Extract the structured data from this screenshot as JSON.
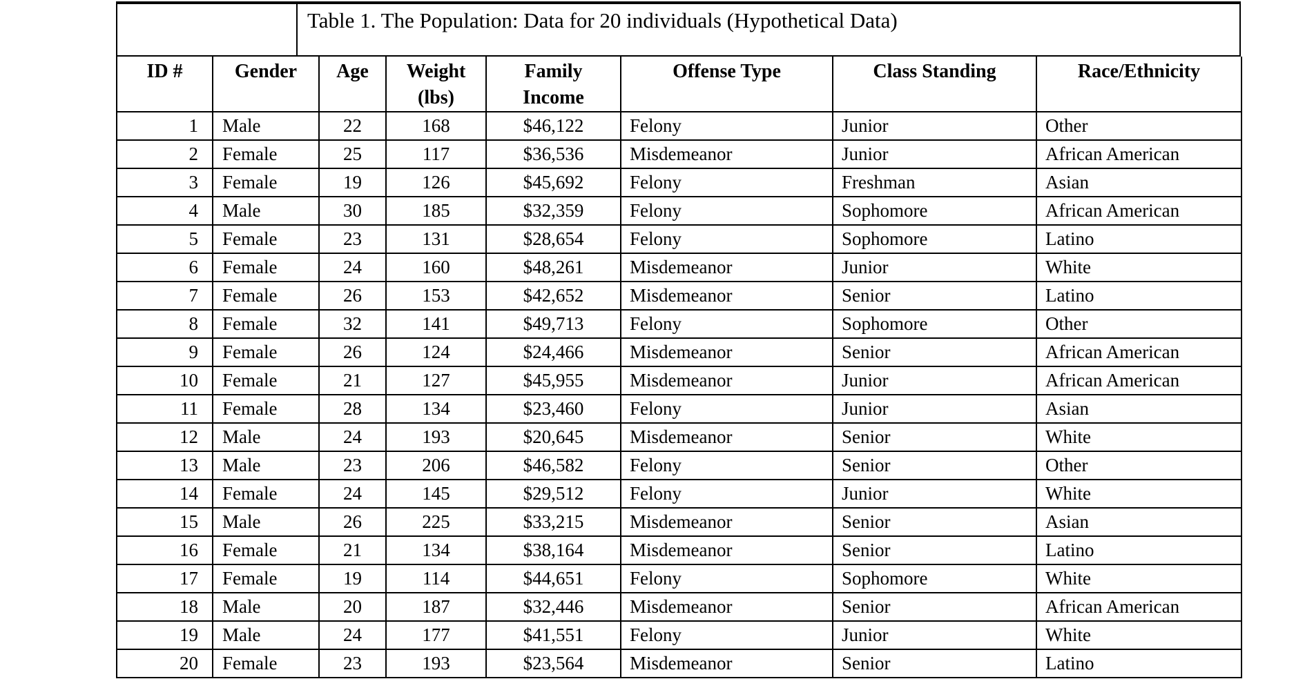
{
  "colors": {
    "page_background": "#ffffff",
    "border": "#000000",
    "text": "#000000"
  },
  "table": {
    "title": "Table 1. The Population: Data for 20 individuals (Hypothetical Data)",
    "headers": [
      "ID #",
      "Gender",
      "Age",
      "Weight (lbs)",
      "Family Income",
      "Offense Type",
      "Class Standing",
      "Race/Ethnicity"
    ],
    "rows": [
      [
        "1",
        "Male",
        "22",
        "168",
        "$46,122",
        "Felony",
        "Junior",
        "Other"
      ],
      [
        "2",
        "Female",
        "25",
        "117",
        "$36,536",
        "Misdemeanor",
        "Junior",
        "African American"
      ],
      [
        "3",
        "Female",
        "19",
        "126",
        "$45,692",
        "Felony",
        "Freshman",
        "Asian"
      ],
      [
        "4",
        "Male",
        "30",
        "185",
        "$32,359",
        "Felony",
        "Sophomore",
        "African American"
      ],
      [
        "5",
        "Female",
        "23",
        "131",
        "$28,654",
        "Felony",
        "Sophomore",
        "Latino"
      ],
      [
        "6",
        "Female",
        "24",
        "160",
        "$48,261",
        "Misdemeanor",
        "Junior",
        "White"
      ],
      [
        "7",
        "Female",
        "26",
        "153",
        "$42,652",
        "Misdemeanor",
        "Senior",
        "Latino"
      ],
      [
        "8",
        "Female",
        "32",
        "141",
        "$49,713",
        "Felony",
        "Sophomore",
        "Other"
      ],
      [
        "9",
        "Female",
        "26",
        "124",
        "$24,466",
        "Misdemeanor",
        "Senior",
        "African American"
      ],
      [
        "10",
        "Female",
        "21",
        "127",
        "$45,955",
        "Misdemeanor",
        "Junior",
        "African American"
      ],
      [
        "11",
        "Female",
        "28",
        "134",
        "$23,460",
        "Felony",
        "Junior",
        "Asian"
      ],
      [
        "12",
        "Male",
        "24",
        "193",
        "$20,645",
        "Misdemeanor",
        "Senior",
        "White"
      ],
      [
        "13",
        "Male",
        "23",
        "206",
        "$46,582",
        "Felony",
        "Senior",
        "Other"
      ],
      [
        "14",
        "Female",
        "24",
        "145",
        "$29,512",
        "Felony",
        "Junior",
        "White"
      ],
      [
        "15",
        "Male",
        "26",
        "225",
        "$33,215",
        "Misdemeanor",
        "Senior",
        "Asian"
      ],
      [
        "16",
        "Female",
        "21",
        "134",
        "$38,164",
        "Misdemeanor",
        "Senior",
        "Latino"
      ],
      [
        "17",
        "Female",
        "19",
        "114",
        "$44,651",
        "Felony",
        "Sophomore",
        "White"
      ],
      [
        "18",
        "Male",
        "20",
        "187",
        "$32,446",
        "Misdemeanor",
        "Senior",
        "African American"
      ],
      [
        "19",
        "Male",
        "24",
        "177",
        "$41,551",
        "Felony",
        "Junior",
        "White"
      ],
      [
        "20",
        "Female",
        "23",
        "193",
        "$23,564",
        "Misdemeanor",
        "Senior",
        "Latino"
      ]
    ]
  }
}
